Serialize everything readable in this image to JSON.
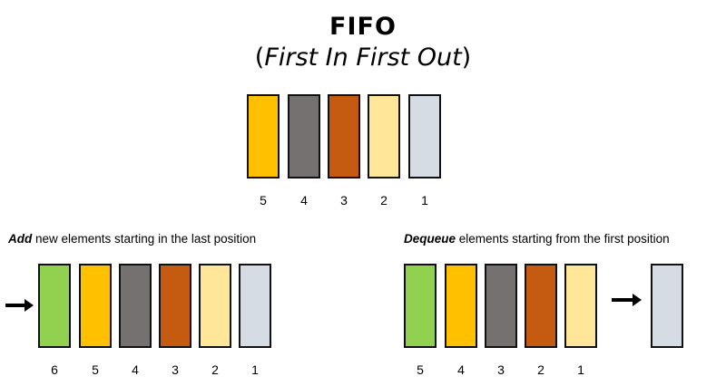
{
  "title": "FIFO",
  "subtitle": {
    "open": "(",
    "text": "First In First Out",
    "close": ")"
  },
  "colors": {
    "green": "#92d050",
    "amber": "#ffc000",
    "gray": "#767171",
    "rust": "#c55a11",
    "cream": "#ffe699",
    "bluegray": "#d6dce4"
  },
  "top_queue": {
    "blocks": [
      {
        "label": "5",
        "color": "#ffc000"
      },
      {
        "label": "4",
        "color": "#767171"
      },
      {
        "label": "3",
        "color": "#c55a11"
      },
      {
        "label": "2",
        "color": "#ffe699"
      },
      {
        "label": "1",
        "color": "#d6dce4"
      }
    ]
  },
  "add_panel": {
    "caption_bold": "Add",
    "caption_rest": " new elements starting in the last position",
    "icon": "arrow-right-icon",
    "blocks": [
      {
        "label": "6",
        "color": "#92d050"
      },
      {
        "label": "5",
        "color": "#ffc000"
      },
      {
        "label": "4",
        "color": "#767171"
      },
      {
        "label": "3",
        "color": "#c55a11"
      },
      {
        "label": "2",
        "color": "#ffe699"
      },
      {
        "label": "1",
        "color": "#d6dce4"
      }
    ]
  },
  "dequeue_panel": {
    "caption_bold": "Dequeue",
    "caption_rest": " elements starting from the first position",
    "icon": "arrow-right-icon",
    "blocks": [
      {
        "label": "5",
        "color": "#92d050"
      },
      {
        "label": "4",
        "color": "#ffc000"
      },
      {
        "label": "3",
        "color": "#767171"
      },
      {
        "label": "2",
        "color": "#c55a11"
      },
      {
        "label": "1",
        "color": "#ffe699"
      }
    ],
    "removed": {
      "color": "#d6dce4"
    }
  }
}
